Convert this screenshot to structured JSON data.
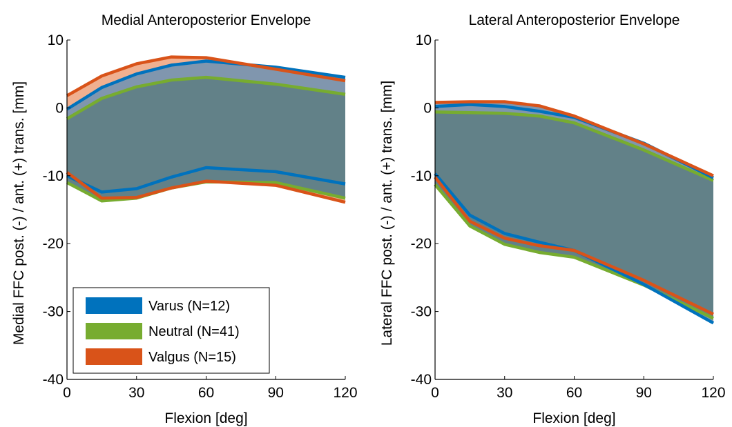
{
  "chart_data": [
    {
      "type": "area",
      "title": "Medial Anteroposterior Envelope",
      "xlabel": "Flexion [deg]",
      "ylabel": "Medial FFC post. (-) / ant. (+) trans. [mm]",
      "xlim": [
        0,
        120
      ],
      "ylim": [
        -40,
        10
      ],
      "xticks": [
        "0",
        "30",
        "60",
        "90",
        "120"
      ],
      "yticks": [
        "10",
        "0",
        "-10",
        "-20",
        "-30",
        "-40"
      ],
      "x": [
        0,
        15,
        30,
        45,
        60,
        90,
        120
      ],
      "grid": false,
      "legend": {
        "placement": "bottom-left",
        "entries": [
          "Varus (N=12)",
          "Neutral (N=41)",
          "Valgus (N=15)"
        ]
      },
      "series": [
        {
          "name": "Valgus (N=15)",
          "color": "#D95319",
          "fill": "#F0B090",
          "upper": [
            1.8,
            4.7,
            6.5,
            7.5,
            7.4,
            5.7,
            4.0
          ],
          "lower": [
            -9.5,
            -13.3,
            -13.2,
            -11.8,
            -10.8,
            -11.4,
            -13.9
          ]
        },
        {
          "name": "Varus (N=12)",
          "color": "#0072BD",
          "fill": "#8096AE",
          "upper": [
            -0.2,
            3.0,
            5.0,
            6.3,
            6.9,
            6.0,
            4.5
          ],
          "lower": [
            -10.0,
            -12.4,
            -11.9,
            -10.2,
            -8.8,
            -9.4,
            -11.2
          ]
        },
        {
          "name": "Neutral (N=41)",
          "color": "#77AC30",
          "fill": "#628188",
          "upper": [
            -1.6,
            1.4,
            3.1,
            4.1,
            4.5,
            3.5,
            2.0
          ],
          "lower": [
            -11.0,
            -13.7,
            -13.3,
            -11.8,
            -10.9,
            -11.0,
            -13.3
          ]
        }
      ]
    },
    {
      "type": "area",
      "title": "Lateral Anteroposterior Envelope",
      "xlabel": "Flexion [deg]",
      "ylabel": "Lateral FFC post. (-) / ant. (+) trans. [mm]",
      "xlim": [
        0,
        120
      ],
      "ylim": [
        -40,
        10
      ],
      "xticks": [
        "0",
        "30",
        "60",
        "90",
        "120"
      ],
      "yticks": [
        "10",
        "0",
        "-10",
        "-20",
        "-30",
        "-40"
      ],
      "x": [
        0,
        15,
        30,
        45,
        60,
        90,
        120
      ],
      "grid": false,
      "series": [
        {
          "name": "Valgus (N=15)",
          "color": "#D95319",
          "fill": "#8096AE",
          "upper": [
            0.8,
            0.9,
            0.9,
            0.3,
            -1.2,
            -5.3,
            -10.0
          ],
          "lower": [
            -10.2,
            -16.7,
            -19.2,
            -20.3,
            -21.0,
            -25.4,
            -30.4
          ]
        },
        {
          "name": "Varus (N=12)",
          "color": "#0072BD",
          "fill": "#8096AE",
          "upper": [
            0.2,
            0.5,
            0.2,
            -0.5,
            -1.4,
            -5.2,
            -10.3
          ],
          "lower": [
            -9.7,
            -15.8,
            -18.5,
            -19.8,
            -21.0,
            -26.0,
            -31.7
          ]
        },
        {
          "name": "Neutral (N=41)",
          "color": "#77AC30",
          "fill": "#628188",
          "upper": [
            -0.6,
            -0.7,
            -0.8,
            -1.2,
            -2.2,
            -6.2,
            -10.7
          ],
          "lower": [
            -11.3,
            -17.4,
            -20.1,
            -21.3,
            -22.0,
            -26.1,
            -31.0
          ]
        }
      ]
    }
  ]
}
